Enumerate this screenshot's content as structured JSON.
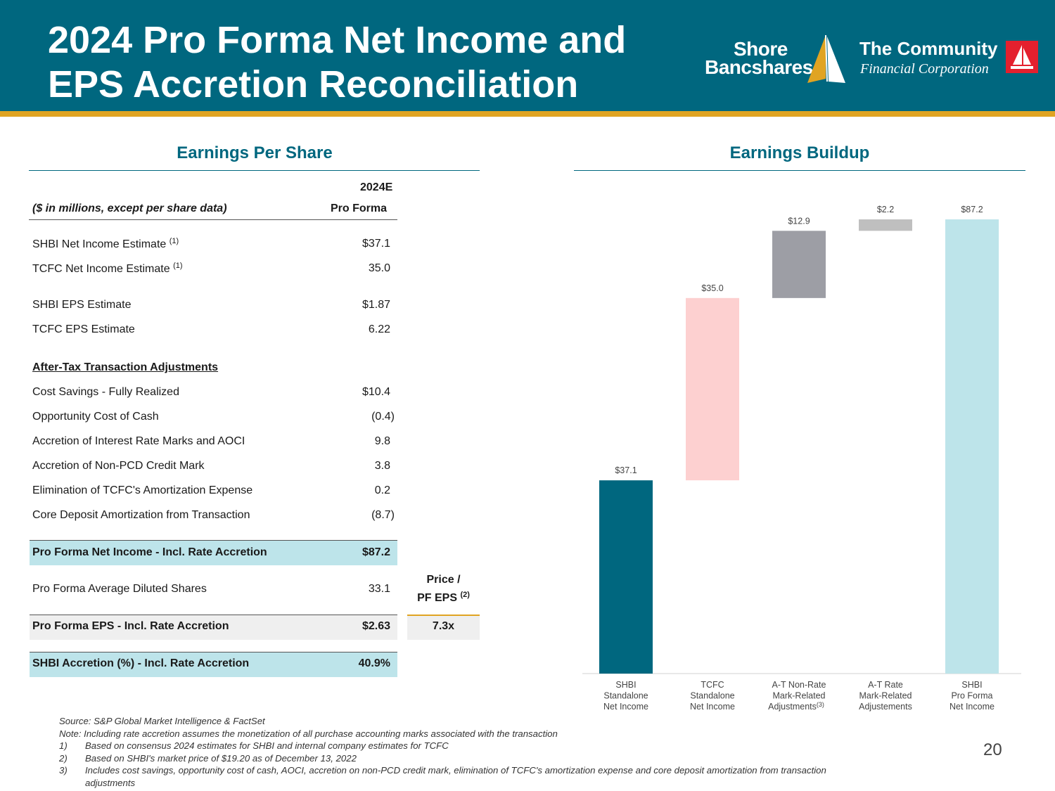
{
  "header": {
    "title_line1": "2024 Pro Forma Net Income and",
    "title_line2": "EPS Accretion Reconciliation",
    "logo_shore_line1": "Shore",
    "logo_shore_line2": "Bancshares",
    "logo_community_line1": "The Community",
    "logo_community_line2": "Financial Corporation",
    "colors": {
      "band": "#00677f",
      "stripe": "#e0a422",
      "community_box": "#e4202e"
    }
  },
  "eps": {
    "section_title": "Earnings Per Share",
    "col_header_line1": "2024E",
    "col_header_line2": "Pro Forma",
    "units_label": "($ in millions, except per share data)",
    "shbi_ni_label": "SHBI Net Income Estimate",
    "shbi_ni_sup": "(1)",
    "shbi_ni_value": "$37.1",
    "tcfc_ni_label": "TCFC Net Income Estimate",
    "tcfc_ni_sup": "(1)",
    "tcfc_ni_value": "35.0",
    "shbi_eps_label": "SHBI EPS Estimate",
    "shbi_eps_value": "$1.87",
    "tcfc_eps_label": "TCFC EPS Estimate",
    "tcfc_eps_value": "6.22",
    "adjustments_heading": "After-Tax Transaction Adjustments",
    "adjustments": [
      {
        "label": "Cost Savings - Fully Realized",
        "value": "$10.4"
      },
      {
        "label": "Opportunity Cost of Cash",
        "value": "(0.4)"
      },
      {
        "label": "Accretion of Interest Rate Marks and AOCI",
        "value": "9.8"
      },
      {
        "label": "Accretion of Non-PCD Credit Mark",
        "value": "3.8"
      },
      {
        "label": "Elimination of TCFC's Amortization Expense",
        "value": "0.2"
      },
      {
        "label": "Core Deposit Amortization from Transaction",
        "value": "(8.7)"
      }
    ],
    "pf_ni_label": "Pro Forma Net Income - Incl. Rate Accretion",
    "pf_ni_value": "$87.2",
    "pf_shares_label": "Pro Forma Average Diluted Shares",
    "pf_shares_value": "33.1",
    "price_header_line1": "Price /",
    "price_header_line2": "PF EPS",
    "price_header_sup": "(2)",
    "pf_eps_label": "Pro Forma EPS - Incl. Rate Accretion",
    "pf_eps_value": "$2.63",
    "price_value": "7.3x",
    "accretion_label": "SHBI Accretion (%) - Incl. Rate Accretion",
    "accretion_value": "40.9%",
    "colors": {
      "highlight_blue": "#bde4ea",
      "highlight_gray": "#efefef"
    }
  },
  "buildup": {
    "section_title": "Earnings Buildup"
  },
  "chart_data": {
    "type": "bar",
    "subtype": "waterfall",
    "title": "Earnings Buildup",
    "categories": [
      "SHBI Standalone Net Income",
      "TCFC Standalone Net Income",
      "A-T Non-Rate Mark-Related Adjustments",
      "A-T Rate Mark-Related Adjustements",
      "SHBI Pro Forma Net Income"
    ],
    "category_lines": [
      [
        "SHBI",
        "Standalone",
        "Net Income"
      ],
      [
        "TCFC",
        "Standalone",
        "Net Income"
      ],
      [
        "A-T Non-Rate",
        "Mark-Related",
        "Adjustments"
      ],
      [
        "A-T Rate",
        "Mark-Related",
        "Adjustements"
      ],
      [
        "SHBI",
        "Pro Forma",
        "Net Income"
      ]
    ],
    "category_sup": [
      "",
      "",
      "(3)",
      "",
      ""
    ],
    "values": [
      37.1,
      35.0,
      12.9,
      2.2,
      87.2
    ],
    "bases": [
      0,
      37.1,
      72.1,
      85.0,
      0
    ],
    "data_labels": [
      "$37.1",
      "$35.0",
      "$12.9",
      "$2.2",
      "$87.2"
    ],
    "colors": [
      "#00677f",
      "#fdd0d0",
      "#9d9ea5",
      "#bfbfbf",
      "#bde4ea"
    ],
    "ylim": [
      0,
      87.2
    ],
    "grid": false,
    "legend": "none",
    "xlabel": "",
    "ylabel": ""
  },
  "footnotes": {
    "source": "Source: S&P Global Market Intelligence & FactSet",
    "note": "Note: Including rate accretion assumes the monetization of all purchase accounting marks associated with the transaction",
    "items": [
      {
        "num": "1)",
        "text": "Based on consensus 2024 estimates for SHBI and internal company estimates for TCFC"
      },
      {
        "num": "2)",
        "text": "Based on SHBI's market price of $19.20 as of December 13, 2022"
      },
      {
        "num": "3)",
        "text": "Includes cost savings, opportunity cost of cash, AOCI, accretion on non-PCD credit mark, elimination of TCFC's amortization expense and core deposit amortization from transaction"
      }
    ],
    "item3_cont": "adjustments"
  },
  "page_number": "20"
}
